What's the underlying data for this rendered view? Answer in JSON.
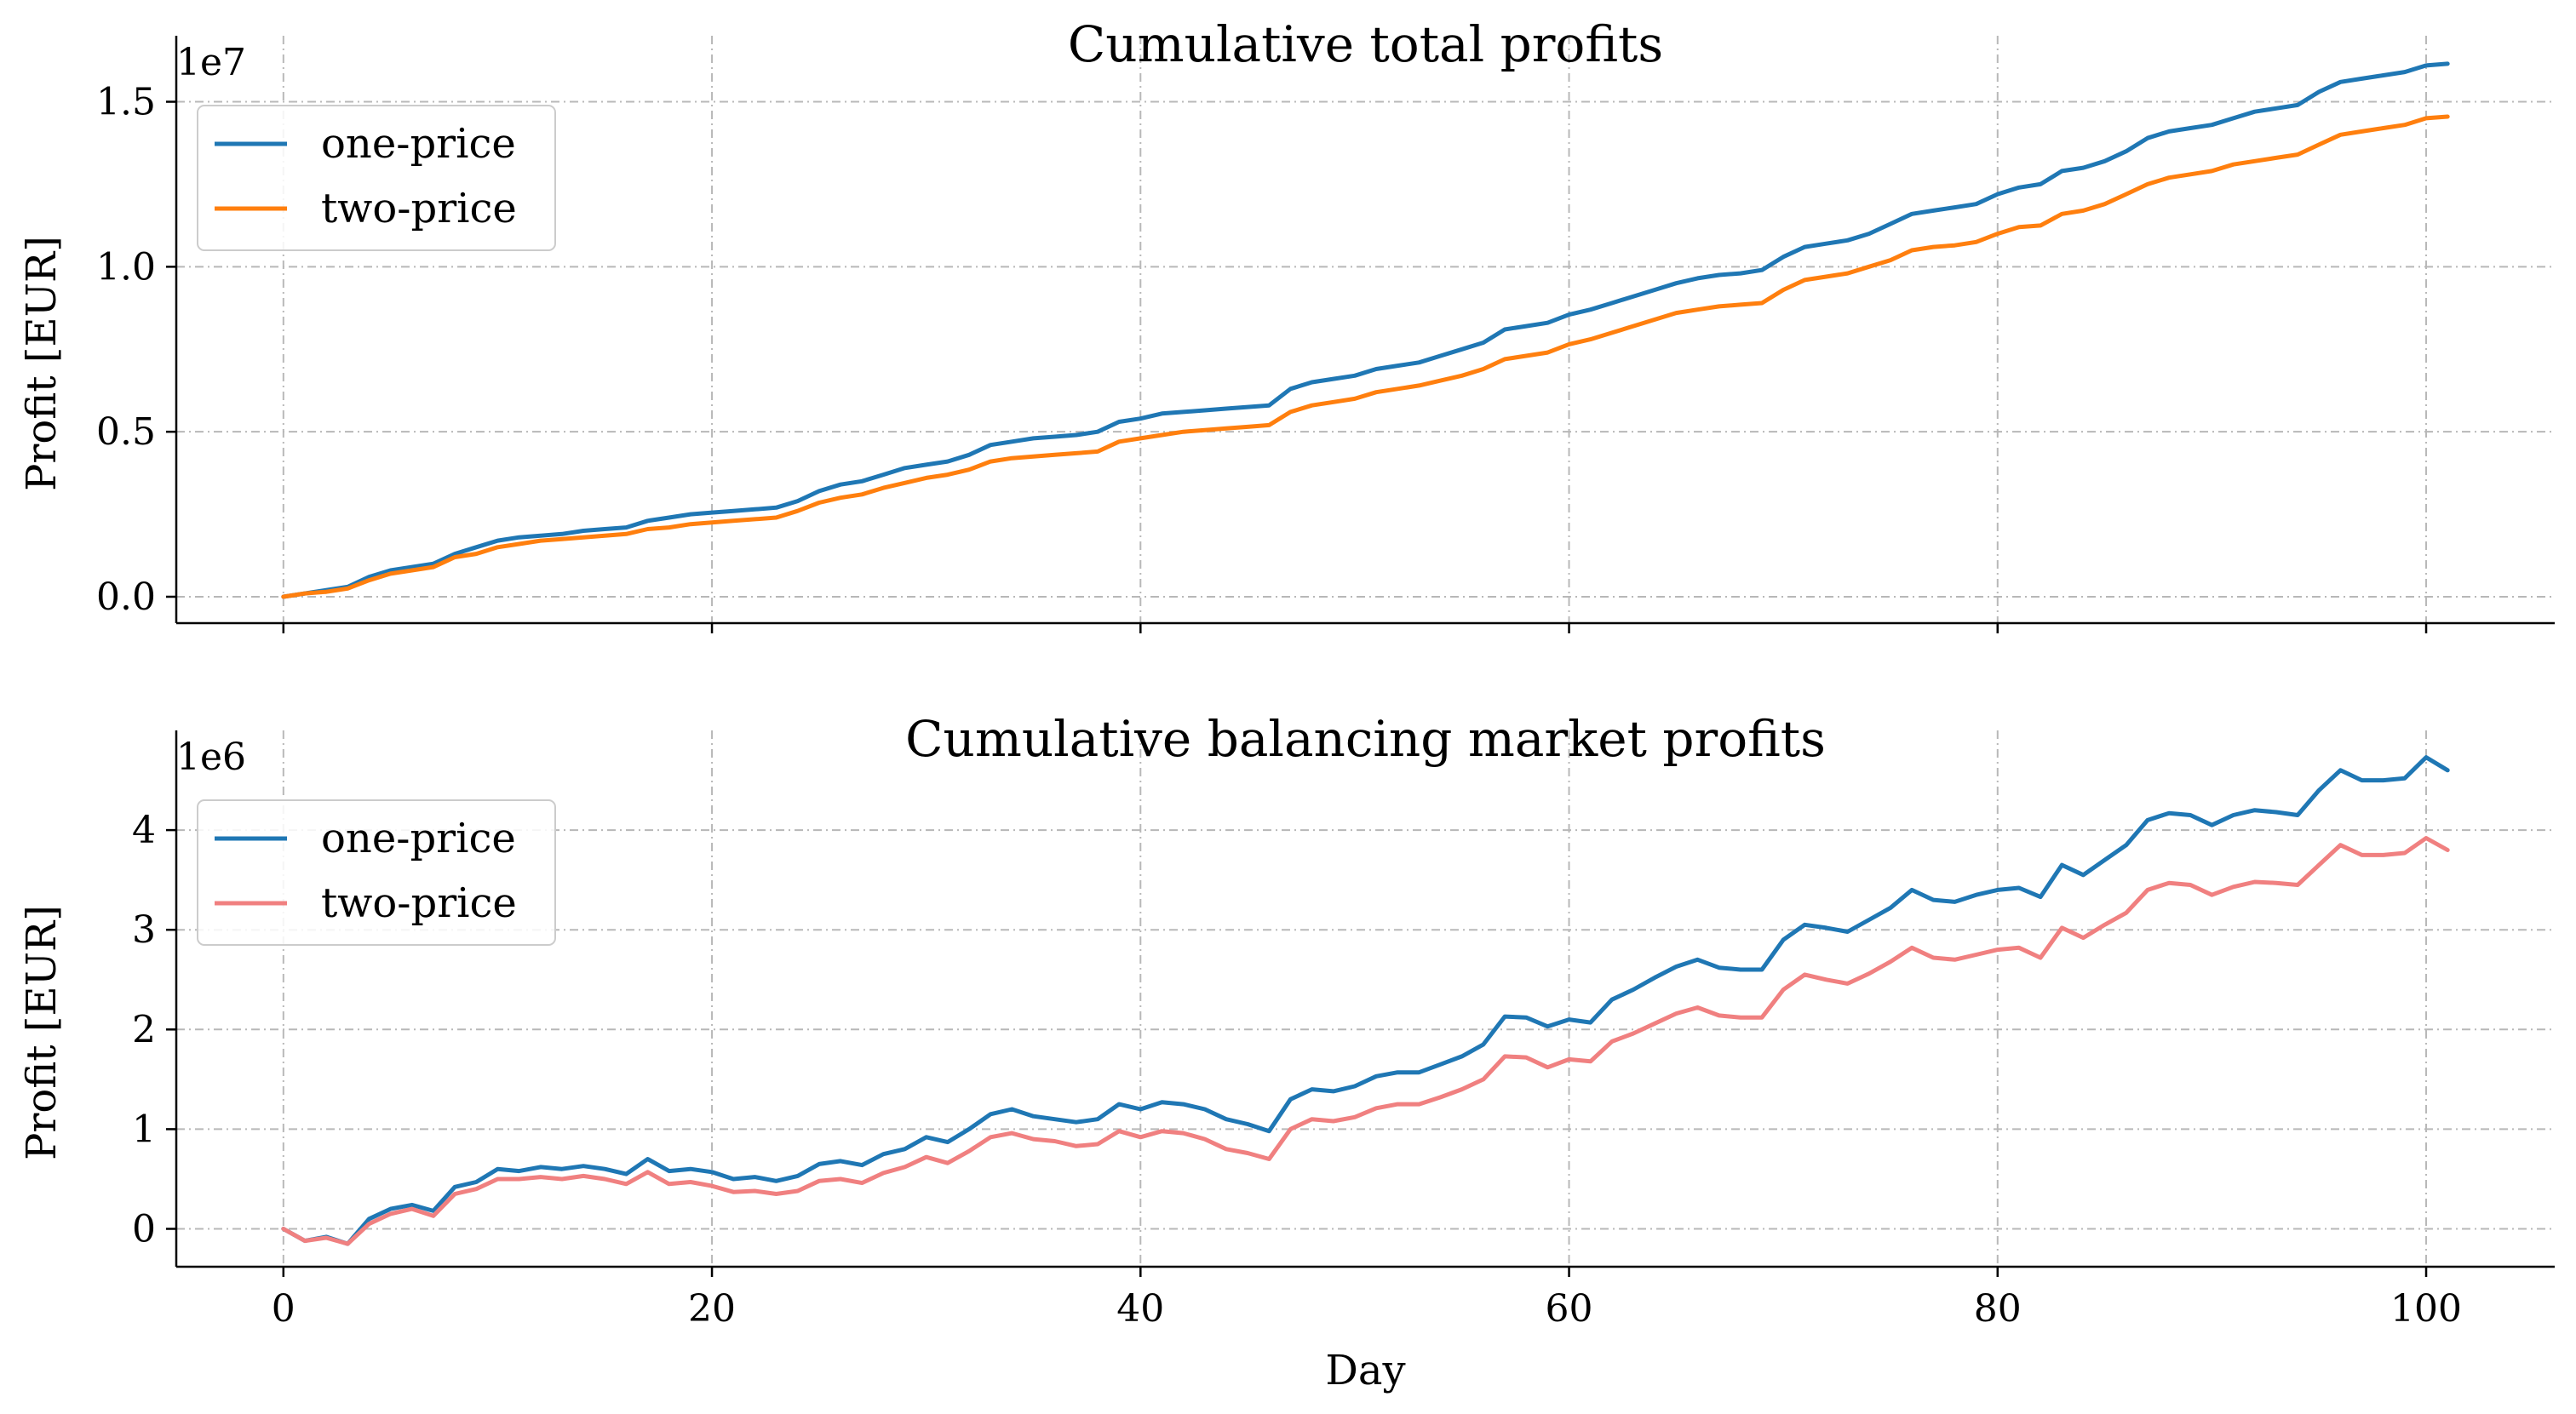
{
  "chart_data": [
    {
      "type": "line",
      "title": "Cumulative total profits",
      "xlabel": "",
      "ylabel": "Profit [EUR]",
      "offset_text": "1e7",
      "xlim": [
        -5,
        106
      ],
      "ylim": [
        -0.08,
        1.7
      ],
      "xticks": [
        0,
        20,
        40,
        60,
        80,
        100
      ],
      "xtick_labels_visible": false,
      "yticks": [
        0.0,
        0.5,
        1.0,
        1.5
      ],
      "ytick_labels": [
        "0.0",
        "0.5",
        "1.0",
        "1.5"
      ],
      "grid": true,
      "legend_position": "upper-left",
      "series": [
        {
          "name": "one-price",
          "color": "#1f77b4",
          "x": [
            0,
            1,
            2,
            3,
            4,
            5,
            6,
            7,
            8,
            9,
            10,
            11,
            12,
            13,
            14,
            15,
            16,
            17,
            18,
            19,
            20,
            21,
            22,
            23,
            24,
            25,
            26,
            27,
            28,
            29,
            30,
            31,
            32,
            33,
            34,
            35,
            36,
            37,
            38,
            39,
            40,
            41,
            42,
            43,
            44,
            45,
            46,
            47,
            48,
            49,
            50,
            51,
            52,
            53,
            54,
            55,
            56,
            57,
            58,
            59,
            60,
            61,
            62,
            63,
            64,
            65,
            66,
            67,
            68,
            69,
            70,
            71,
            72,
            73,
            74,
            75,
            76,
            77,
            78,
            79,
            80,
            81,
            82,
            83,
            84,
            85,
            86,
            87,
            88,
            89,
            90,
            91,
            92,
            93,
            94,
            95,
            96,
            97,
            98,
            99,
            100,
            101
          ],
          "values": [
            0.0,
            0.01,
            0.02,
            0.03,
            0.06,
            0.08,
            0.09,
            0.1,
            0.13,
            0.15,
            0.17,
            0.18,
            0.185,
            0.19,
            0.2,
            0.205,
            0.21,
            0.23,
            0.24,
            0.25,
            0.255,
            0.26,
            0.265,
            0.27,
            0.29,
            0.32,
            0.34,
            0.35,
            0.37,
            0.39,
            0.4,
            0.41,
            0.43,
            0.46,
            0.47,
            0.48,
            0.485,
            0.49,
            0.5,
            0.53,
            0.54,
            0.555,
            0.56,
            0.565,
            0.57,
            0.575,
            0.58,
            0.63,
            0.65,
            0.66,
            0.67,
            0.69,
            0.7,
            0.71,
            0.73,
            0.75,
            0.77,
            0.81,
            0.82,
            0.83,
            0.855,
            0.87,
            0.89,
            0.91,
            0.93,
            0.95,
            0.965,
            0.975,
            0.98,
            0.99,
            1.03,
            1.06,
            1.07,
            1.08,
            1.1,
            1.13,
            1.16,
            1.17,
            1.18,
            1.19,
            1.22,
            1.24,
            1.25,
            1.29,
            1.3,
            1.32,
            1.35,
            1.39,
            1.41,
            1.42,
            1.43,
            1.45,
            1.47,
            1.48,
            1.49,
            1.53,
            1.56,
            1.57,
            1.58,
            1.59,
            1.61,
            1.615
          ]
        },
        {
          "name": "two-price",
          "color": "#ff7f0e",
          "x": [
            0,
            1,
            2,
            3,
            4,
            5,
            6,
            7,
            8,
            9,
            10,
            11,
            12,
            13,
            14,
            15,
            16,
            17,
            18,
            19,
            20,
            21,
            22,
            23,
            24,
            25,
            26,
            27,
            28,
            29,
            30,
            31,
            32,
            33,
            34,
            35,
            36,
            37,
            38,
            39,
            40,
            41,
            42,
            43,
            44,
            45,
            46,
            47,
            48,
            49,
            50,
            51,
            52,
            53,
            54,
            55,
            56,
            57,
            58,
            59,
            60,
            61,
            62,
            63,
            64,
            65,
            66,
            67,
            68,
            69,
            70,
            71,
            72,
            73,
            74,
            75,
            76,
            77,
            78,
            79,
            80,
            81,
            82,
            83,
            84,
            85,
            86,
            87,
            88,
            89,
            90,
            91,
            92,
            93,
            94,
            95,
            96,
            97,
            98,
            99,
            100,
            101
          ],
          "values": [
            0.0,
            0.01,
            0.015,
            0.025,
            0.05,
            0.07,
            0.08,
            0.09,
            0.12,
            0.13,
            0.15,
            0.16,
            0.17,
            0.175,
            0.18,
            0.185,
            0.19,
            0.205,
            0.21,
            0.22,
            0.225,
            0.23,
            0.235,
            0.24,
            0.26,
            0.285,
            0.3,
            0.31,
            0.33,
            0.345,
            0.36,
            0.37,
            0.385,
            0.41,
            0.42,
            0.425,
            0.43,
            0.435,
            0.44,
            0.47,
            0.48,
            0.49,
            0.5,
            0.505,
            0.51,
            0.515,
            0.52,
            0.56,
            0.58,
            0.59,
            0.6,
            0.62,
            0.63,
            0.64,
            0.655,
            0.67,
            0.69,
            0.72,
            0.73,
            0.74,
            0.765,
            0.78,
            0.8,
            0.82,
            0.84,
            0.86,
            0.87,
            0.88,
            0.885,
            0.89,
            0.93,
            0.96,
            0.97,
            0.98,
            1.0,
            1.02,
            1.05,
            1.06,
            1.065,
            1.075,
            1.1,
            1.12,
            1.125,
            1.16,
            1.17,
            1.19,
            1.22,
            1.25,
            1.27,
            1.28,
            1.29,
            1.31,
            1.32,
            1.33,
            1.34,
            1.37,
            1.4,
            1.41,
            1.42,
            1.43,
            1.45,
            1.455
          ]
        }
      ]
    },
    {
      "type": "line",
      "title": "Cumulative balancing market profits",
      "xlabel": "Day",
      "ylabel": "Profit [EUR]",
      "offset_text": "1e6",
      "xlim": [
        -5,
        106
      ],
      "ylim": [
        -0.38,
        5.0
      ],
      "xticks": [
        0,
        20,
        40,
        60,
        80,
        100
      ],
      "xtick_labels": [
        "0",
        "20",
        "40",
        "60",
        "80",
        "100"
      ],
      "yticks": [
        0,
        1,
        2,
        3,
        4
      ],
      "ytick_labels": [
        "0",
        "1",
        "2",
        "3",
        "4"
      ],
      "grid": true,
      "legend_position": "upper-left",
      "series": [
        {
          "name": "one-price",
          "color": "#1f77b4",
          "x": [
            0,
            1,
            2,
            3,
            4,
            5,
            6,
            7,
            8,
            9,
            10,
            11,
            12,
            13,
            14,
            15,
            16,
            17,
            18,
            19,
            20,
            21,
            22,
            23,
            24,
            25,
            26,
            27,
            28,
            29,
            30,
            31,
            32,
            33,
            34,
            35,
            36,
            37,
            38,
            39,
            40,
            41,
            42,
            43,
            44,
            45,
            46,
            47,
            48,
            49,
            50,
            51,
            52,
            53,
            54,
            55,
            56,
            57,
            58,
            59,
            60,
            61,
            62,
            63,
            64,
            65,
            66,
            67,
            68,
            69,
            70,
            71,
            72,
            73,
            74,
            75,
            76,
            77,
            78,
            79,
            80,
            81,
            82,
            83,
            84,
            85,
            86,
            87,
            88,
            89,
            90,
            91,
            92,
            93,
            94,
            95,
            96,
            97,
            98,
            99,
            100,
            101
          ],
          "values": [
            0.0,
            -0.12,
            -0.08,
            -0.15,
            0.1,
            0.2,
            0.24,
            0.18,
            0.42,
            0.47,
            0.6,
            0.58,
            0.62,
            0.6,
            0.63,
            0.6,
            0.55,
            0.7,
            0.58,
            0.6,
            0.57,
            0.5,
            0.52,
            0.48,
            0.53,
            0.65,
            0.68,
            0.64,
            0.75,
            0.8,
            0.92,
            0.87,
            1.0,
            1.15,
            1.2,
            1.13,
            1.1,
            1.07,
            1.1,
            1.25,
            1.2,
            1.27,
            1.25,
            1.2,
            1.1,
            1.05,
            0.98,
            1.3,
            1.4,
            1.38,
            1.43,
            1.53,
            1.57,
            1.57,
            1.65,
            1.73,
            1.85,
            2.13,
            2.12,
            2.03,
            2.1,
            2.07,
            2.3,
            2.4,
            2.52,
            2.63,
            2.7,
            2.62,
            2.6,
            2.6,
            2.9,
            3.05,
            3.02,
            2.98,
            3.1,
            3.22,
            3.4,
            3.3,
            3.28,
            3.35,
            3.4,
            3.42,
            3.33,
            3.65,
            3.55,
            3.7,
            3.85,
            4.1,
            4.17,
            4.15,
            4.05,
            4.15,
            4.2,
            4.18,
            4.15,
            4.4,
            4.6,
            4.5,
            4.5,
            4.52,
            4.73,
            4.6
          ]
        },
        {
          "name": "two-price",
          "color": "#f08080",
          "x": [
            0,
            1,
            2,
            3,
            4,
            5,
            6,
            7,
            8,
            9,
            10,
            11,
            12,
            13,
            14,
            15,
            16,
            17,
            18,
            19,
            20,
            21,
            22,
            23,
            24,
            25,
            26,
            27,
            28,
            29,
            30,
            31,
            32,
            33,
            34,
            35,
            36,
            37,
            38,
            39,
            40,
            41,
            42,
            43,
            44,
            45,
            46,
            47,
            48,
            49,
            50,
            51,
            52,
            53,
            54,
            55,
            56,
            57,
            58,
            59,
            60,
            61,
            62,
            63,
            64,
            65,
            66,
            67,
            68,
            69,
            70,
            71,
            72,
            73,
            74,
            75,
            76,
            77,
            78,
            79,
            80,
            81,
            82,
            83,
            84,
            85,
            86,
            87,
            88,
            89,
            90,
            91,
            92,
            93,
            94,
            95,
            96,
            97,
            98,
            99,
            100,
            101
          ],
          "values": [
            0.0,
            -0.12,
            -0.09,
            -0.15,
            0.05,
            0.15,
            0.2,
            0.13,
            0.35,
            0.4,
            0.5,
            0.5,
            0.52,
            0.5,
            0.53,
            0.5,
            0.45,
            0.57,
            0.45,
            0.47,
            0.43,
            0.37,
            0.38,
            0.35,
            0.38,
            0.48,
            0.5,
            0.46,
            0.56,
            0.62,
            0.72,
            0.66,
            0.78,
            0.92,
            0.96,
            0.9,
            0.88,
            0.83,
            0.85,
            0.98,
            0.92,
            0.98,
            0.96,
            0.9,
            0.8,
            0.76,
            0.7,
            1.0,
            1.1,
            1.08,
            1.12,
            1.21,
            1.25,
            1.25,
            1.32,
            1.4,
            1.5,
            1.73,
            1.72,
            1.62,
            1.7,
            1.68,
            1.88,
            1.96,
            2.06,
            2.16,
            2.22,
            2.14,
            2.12,
            2.12,
            2.4,
            2.55,
            2.5,
            2.46,
            2.56,
            2.68,
            2.82,
            2.72,
            2.7,
            2.75,
            2.8,
            2.82,
            2.72,
            3.02,
            2.92,
            3.05,
            3.17,
            3.4,
            3.47,
            3.45,
            3.35,
            3.43,
            3.48,
            3.47,
            3.45,
            3.65,
            3.85,
            3.75,
            3.75,
            3.77,
            3.92,
            3.8
          ]
        }
      ]
    }
  ]
}
